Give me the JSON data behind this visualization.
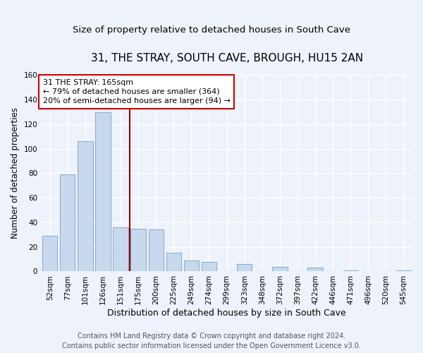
{
  "title": "31, THE STRAY, SOUTH CAVE, BROUGH, HU15 2AN",
  "subtitle": "Size of property relative to detached houses in South Cave",
  "xlabel": "Distribution of detached houses by size in South Cave",
  "ylabel": "Number of detached properties",
  "categories": [
    "52sqm",
    "77sqm",
    "101sqm",
    "126sqm",
    "151sqm",
    "175sqm",
    "200sqm",
    "225sqm",
    "249sqm",
    "274sqm",
    "299sqm",
    "323sqm",
    "348sqm",
    "372sqm",
    "397sqm",
    "422sqm",
    "446sqm",
    "471sqm",
    "496sqm",
    "520sqm",
    "545sqm"
  ],
  "values": [
    29,
    79,
    106,
    130,
    36,
    35,
    34,
    15,
    9,
    8,
    0,
    6,
    0,
    4,
    0,
    3,
    0,
    1,
    0,
    0,
    1
  ],
  "bar_color": "#c8d9ee",
  "bar_edge_color": "#8ab0d0",
  "vline_x_idx": 4.5,
  "vline_color": "#990000",
  "annotation_line1": "31 THE STRAY: 165sqm",
  "annotation_line2": "← 79% of detached houses are smaller (364)",
  "annotation_line3": "20% of semi-detached houses are larger (94) →",
  "annotation_box_color": "#ffffff",
  "annotation_box_edge": "#cc0000",
  "ylim": [
    0,
    160
  ],
  "yticks": [
    0,
    20,
    40,
    60,
    80,
    100,
    120,
    140,
    160
  ],
  "footer_line1": "Contains HM Land Registry data © Crown copyright and database right 2024.",
  "footer_line2": "Contains public sector information licensed under the Open Government Licence v3.0.",
  "title_fontsize": 11,
  "subtitle_fontsize": 9.5,
  "xlabel_fontsize": 9,
  "ylabel_fontsize": 8.5,
  "tick_fontsize": 7.5,
  "annotation_fontsize": 8,
  "footer_fontsize": 7,
  "background_color": "#eef2fa",
  "grid_color": "#ffffff"
}
